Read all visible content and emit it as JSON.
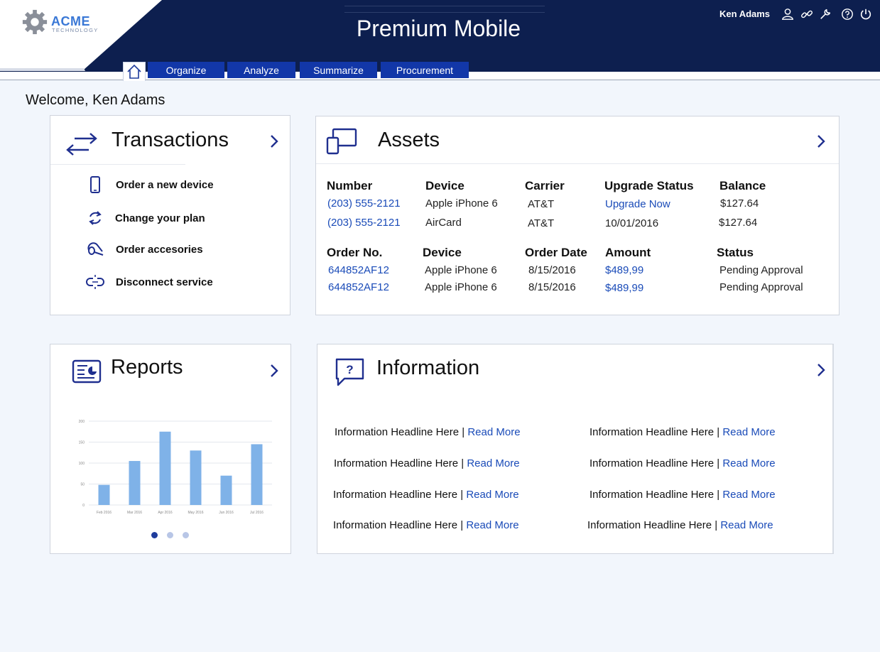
{
  "app": {
    "logo_name": "ACME",
    "logo_sub": "TECHNOLOGY",
    "title": "Premium Mobile",
    "username": "Ken Adams"
  },
  "nav": {
    "tabs": [
      {
        "label": "Organize"
      },
      {
        "label": "Analyze"
      },
      {
        "label": "Summarize"
      },
      {
        "label": "Procurement"
      }
    ]
  },
  "welcome": "Welcome, Ken Adams",
  "transactions": {
    "title": "Transactions",
    "items": [
      {
        "label": "Order a new device",
        "icon": "phone-icon"
      },
      {
        "label": "Change your plan",
        "icon": "refresh-icon"
      },
      {
        "label": "Order accesories",
        "icon": "headset-icon"
      },
      {
        "label": "Disconnect service",
        "icon": "disconnect-icon"
      }
    ]
  },
  "assets": {
    "title": "Assets",
    "devices_headers": [
      "Number",
      "Device",
      "Carrier",
      "Upgrade Status",
      "Balance"
    ],
    "devices_rows": [
      [
        "(203) 555-2121",
        "Apple iPhone 6",
        "AT&T",
        "Upgrade Now",
        "$127.64"
      ],
      [
        "(203) 555-2121",
        "AirCard",
        "AT&T",
        "10/01/2016",
        "$127.64"
      ]
    ],
    "orders_headers": [
      "Order No.",
      "Device",
      "Order Date",
      "Amount",
      "Status"
    ],
    "orders_rows": [
      [
        "644852AF12",
        "Apple iPhone 6",
        "8/15/2016",
        "$489,99",
        "Pending Approval"
      ],
      [
        "644852AF12",
        "Apple iPhone 6",
        "8/15/2016",
        "$489,99",
        "Pending Approval"
      ]
    ]
  },
  "reports": {
    "title": "Reports",
    "carousel_dots": 3,
    "active_dot": 0
  },
  "chart_data": {
    "type": "bar",
    "categories": [
      "Feb 2016",
      "Mar 2016",
      "Apr 2016",
      "May 2016",
      "Jun 2016",
      "Jul 2016"
    ],
    "values": [
      48,
      105,
      175,
      130,
      70,
      145
    ],
    "ylim": [
      0,
      200
    ],
    "yticks": [
      0,
      50,
      100,
      150,
      200
    ],
    "ylabel": "",
    "bar_color": "#7fb2e8"
  },
  "information": {
    "title": "Information",
    "separator": "|",
    "headline": "Information Headline Here",
    "read_more": "Read More",
    "rows": 4,
    "columns": 2
  },
  "colors": {
    "header_bg": "#0d1f4f",
    "tab_bg": "#1237a8",
    "link": "#1a4bb8",
    "icon": "#1f2f8f"
  }
}
